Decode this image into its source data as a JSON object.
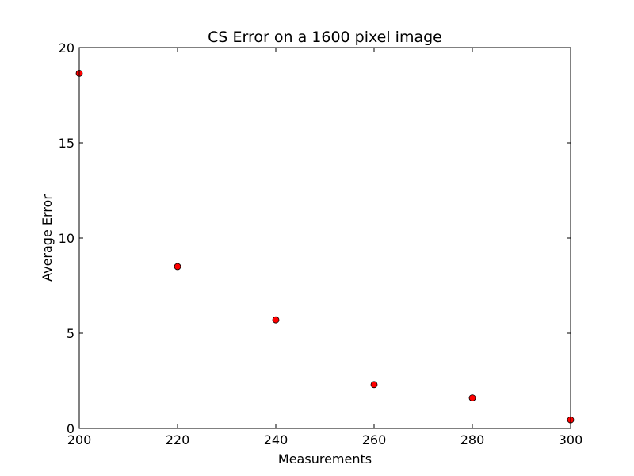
{
  "chart_data": {
    "type": "scatter",
    "title": "CS Error on a 1600 pixel image",
    "xlabel": "Measurements",
    "ylabel": "Average Error",
    "xlim": [
      200,
      300
    ],
    "ylim": [
      0,
      20
    ],
    "xticks": [
      200,
      220,
      240,
      260,
      280,
      300
    ],
    "yticks": [
      0,
      5,
      10,
      15,
      20
    ],
    "grid": false,
    "marker_color": "#ff0000",
    "series": [
      {
        "x": [
          200,
          220,
          240,
          260,
          280,
          300
        ],
        "y": [
          18.65,
          8.5,
          5.7,
          2.3,
          1.6,
          0.45
        ]
      }
    ]
  }
}
